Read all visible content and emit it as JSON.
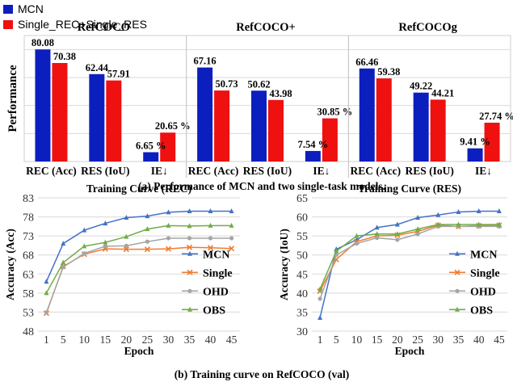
{
  "legend_top": [
    {
      "name": "MCN",
      "color": "#0b1fbf"
    },
    {
      "name": "Single_REC+Single_RES",
      "color": "#ef1010"
    }
  ],
  "bar_panel": {
    "ylabel": "Performance",
    "caption": "(a)  Performance of MCN and two single-task  models.",
    "groups": [
      {
        "title": "RefCOCO",
        "categories": [
          "REC (Acc)",
          "RES (IoU)",
          "IE↓"
        ],
        "mcn": [
          80.08,
          62.44,
          6.65
        ],
        "single": [
          70.38,
          57.91,
          20.65
        ],
        "mcn_labels": [
          "80.08",
          "62.44",
          "6.65 %"
        ],
        "single_labels": [
          "70.38",
          "57.91",
          "20.65 %"
        ]
      },
      {
        "title": "RefCOCO+",
        "categories": [
          "REC (Acc)",
          "RES (IoU)",
          "IE↓"
        ],
        "mcn": [
          67.16,
          50.62,
          7.54
        ],
        "single": [
          50.73,
          43.98,
          30.85
        ],
        "mcn_labels": [
          "67.16",
          "50.62",
          "7.54 %"
        ],
        "single_labels": [
          "50.73",
          "43.98",
          "30.85 %"
        ]
      },
      {
        "title": "RefCOCOg",
        "categories": [
          "REC (Acc)",
          "RES (IoU)",
          "IE↓"
        ],
        "mcn": [
          66.46,
          49.22,
          9.41
        ],
        "single": [
          59.38,
          44.21,
          27.74
        ],
        "mcn_labels": [
          "66.46",
          "49.22",
          "9.41 %"
        ],
        "single_labels": [
          "59.38",
          "44.21",
          "27.74 %"
        ]
      }
    ]
  },
  "bottom_caption": "(b) Training curve on RefCOCO (val)",
  "chart_data": [
    {
      "type": "bar",
      "title": "RefCOCO",
      "categories": [
        "REC (Acc)",
        "RES (IoU)",
        "IE↓"
      ],
      "series": [
        {
          "name": "MCN",
          "values": [
            80.08,
            62.44,
            6.65
          ]
        },
        {
          "name": "Single_REC+Single_RES",
          "values": [
            70.38,
            57.91,
            20.65
          ]
        }
      ],
      "ylabel": "Performance",
      "ylim": [
        0,
        90
      ]
    },
    {
      "type": "bar",
      "title": "RefCOCO+",
      "categories": [
        "REC (Acc)",
        "RES (IoU)",
        "IE↓"
      ],
      "series": [
        {
          "name": "MCN",
          "values": [
            67.16,
            50.62,
            7.54
          ]
        },
        {
          "name": "Single_REC+Single_RES",
          "values": [
            50.73,
            43.98,
            30.85
          ]
        }
      ],
      "ylim": [
        0,
        90
      ]
    },
    {
      "type": "bar",
      "title": "RefCOCOg",
      "categories": [
        "REC (Acc)",
        "RES (IoU)",
        "IE↓"
      ],
      "series": [
        {
          "name": "MCN",
          "values": [
            66.46,
            49.22,
            9.41
          ]
        },
        {
          "name": "Single_REC+Single_RES",
          "values": [
            59.38,
            44.21,
            27.74
          ]
        }
      ],
      "ylim": [
        0,
        90
      ]
    },
    {
      "type": "line",
      "title": "Training Curve (REC)",
      "xlabel": "Epoch",
      "ylabel": "Accuracy (Acc)",
      "x": [
        1,
        5,
        10,
        15,
        20,
        25,
        30,
        35,
        40,
        45
      ],
      "ylim": [
        48,
        83
      ],
      "yticks": [
        48,
        53,
        58,
        63,
        68,
        73,
        78,
        83
      ],
      "grid": true,
      "legend": "right",
      "series": [
        {
          "name": "MCN",
          "color": "#4472c4",
          "marker": "triangle",
          "values": [
            61,
            71,
            74.5,
            76.3,
            77.8,
            78.2,
            79.2,
            79.5,
            79.5,
            79.5
          ]
        },
        {
          "name": "Single",
          "color": "#ed7d31",
          "marker": "cross",
          "values": [
            52.7,
            65,
            68.2,
            69.6,
            69.5,
            69.5,
            69.6,
            70,
            69.9,
            69.7
          ]
        },
        {
          "name": "OHD",
          "color": "#a5a5a5",
          "marker": "star",
          "values": [
            52.9,
            64.8,
            68.4,
            70.3,
            70.4,
            71.5,
            72.4,
            72.4,
            72.4,
            72.4
          ]
        },
        {
          "name": "OBS",
          "color": "#70ad47",
          "marker": "triangle",
          "values": [
            58,
            66,
            70.3,
            71.3,
            72.8,
            74.8,
            75.7,
            75.6,
            75.7,
            75.7
          ]
        }
      ]
    },
    {
      "type": "line",
      "title": "Training Curve (RES)",
      "xlabel": "Epoch",
      "ylabel": "Accuracy (IoU)",
      "x": [
        1,
        5,
        10,
        15,
        20,
        25,
        30,
        35,
        40,
        45
      ],
      "ylim": [
        30,
        65
      ],
      "yticks": [
        30,
        35,
        40,
        45,
        50,
        55,
        60,
        65
      ],
      "grid": true,
      "legend": "right",
      "series": [
        {
          "name": "MCN",
          "color": "#4472c4",
          "marker": "triangle",
          "values": [
            33.5,
            51.5,
            54,
            57.2,
            58,
            59.8,
            60.5,
            61.3,
            61.5,
            61.5
          ]
        },
        {
          "name": "Single",
          "color": "#ed7d31",
          "marker": "cross",
          "values": [
            40.5,
            48.8,
            53.5,
            55,
            55.2,
            56.2,
            57.8,
            57.5,
            57.7,
            57.8
          ]
        },
        {
          "name": "OHD",
          "color": "#a5a5a5",
          "marker": "star",
          "values": [
            38.5,
            50,
            53,
            54.5,
            54,
            55.5,
            57.5,
            57.5,
            57.5,
            57.5
          ]
        },
        {
          "name": "OBS",
          "color": "#70ad47",
          "marker": "triangle",
          "values": [
            41,
            51,
            55,
            55.5,
            55.5,
            56.8,
            58,
            58,
            58,
            58
          ]
        }
      ]
    }
  ]
}
